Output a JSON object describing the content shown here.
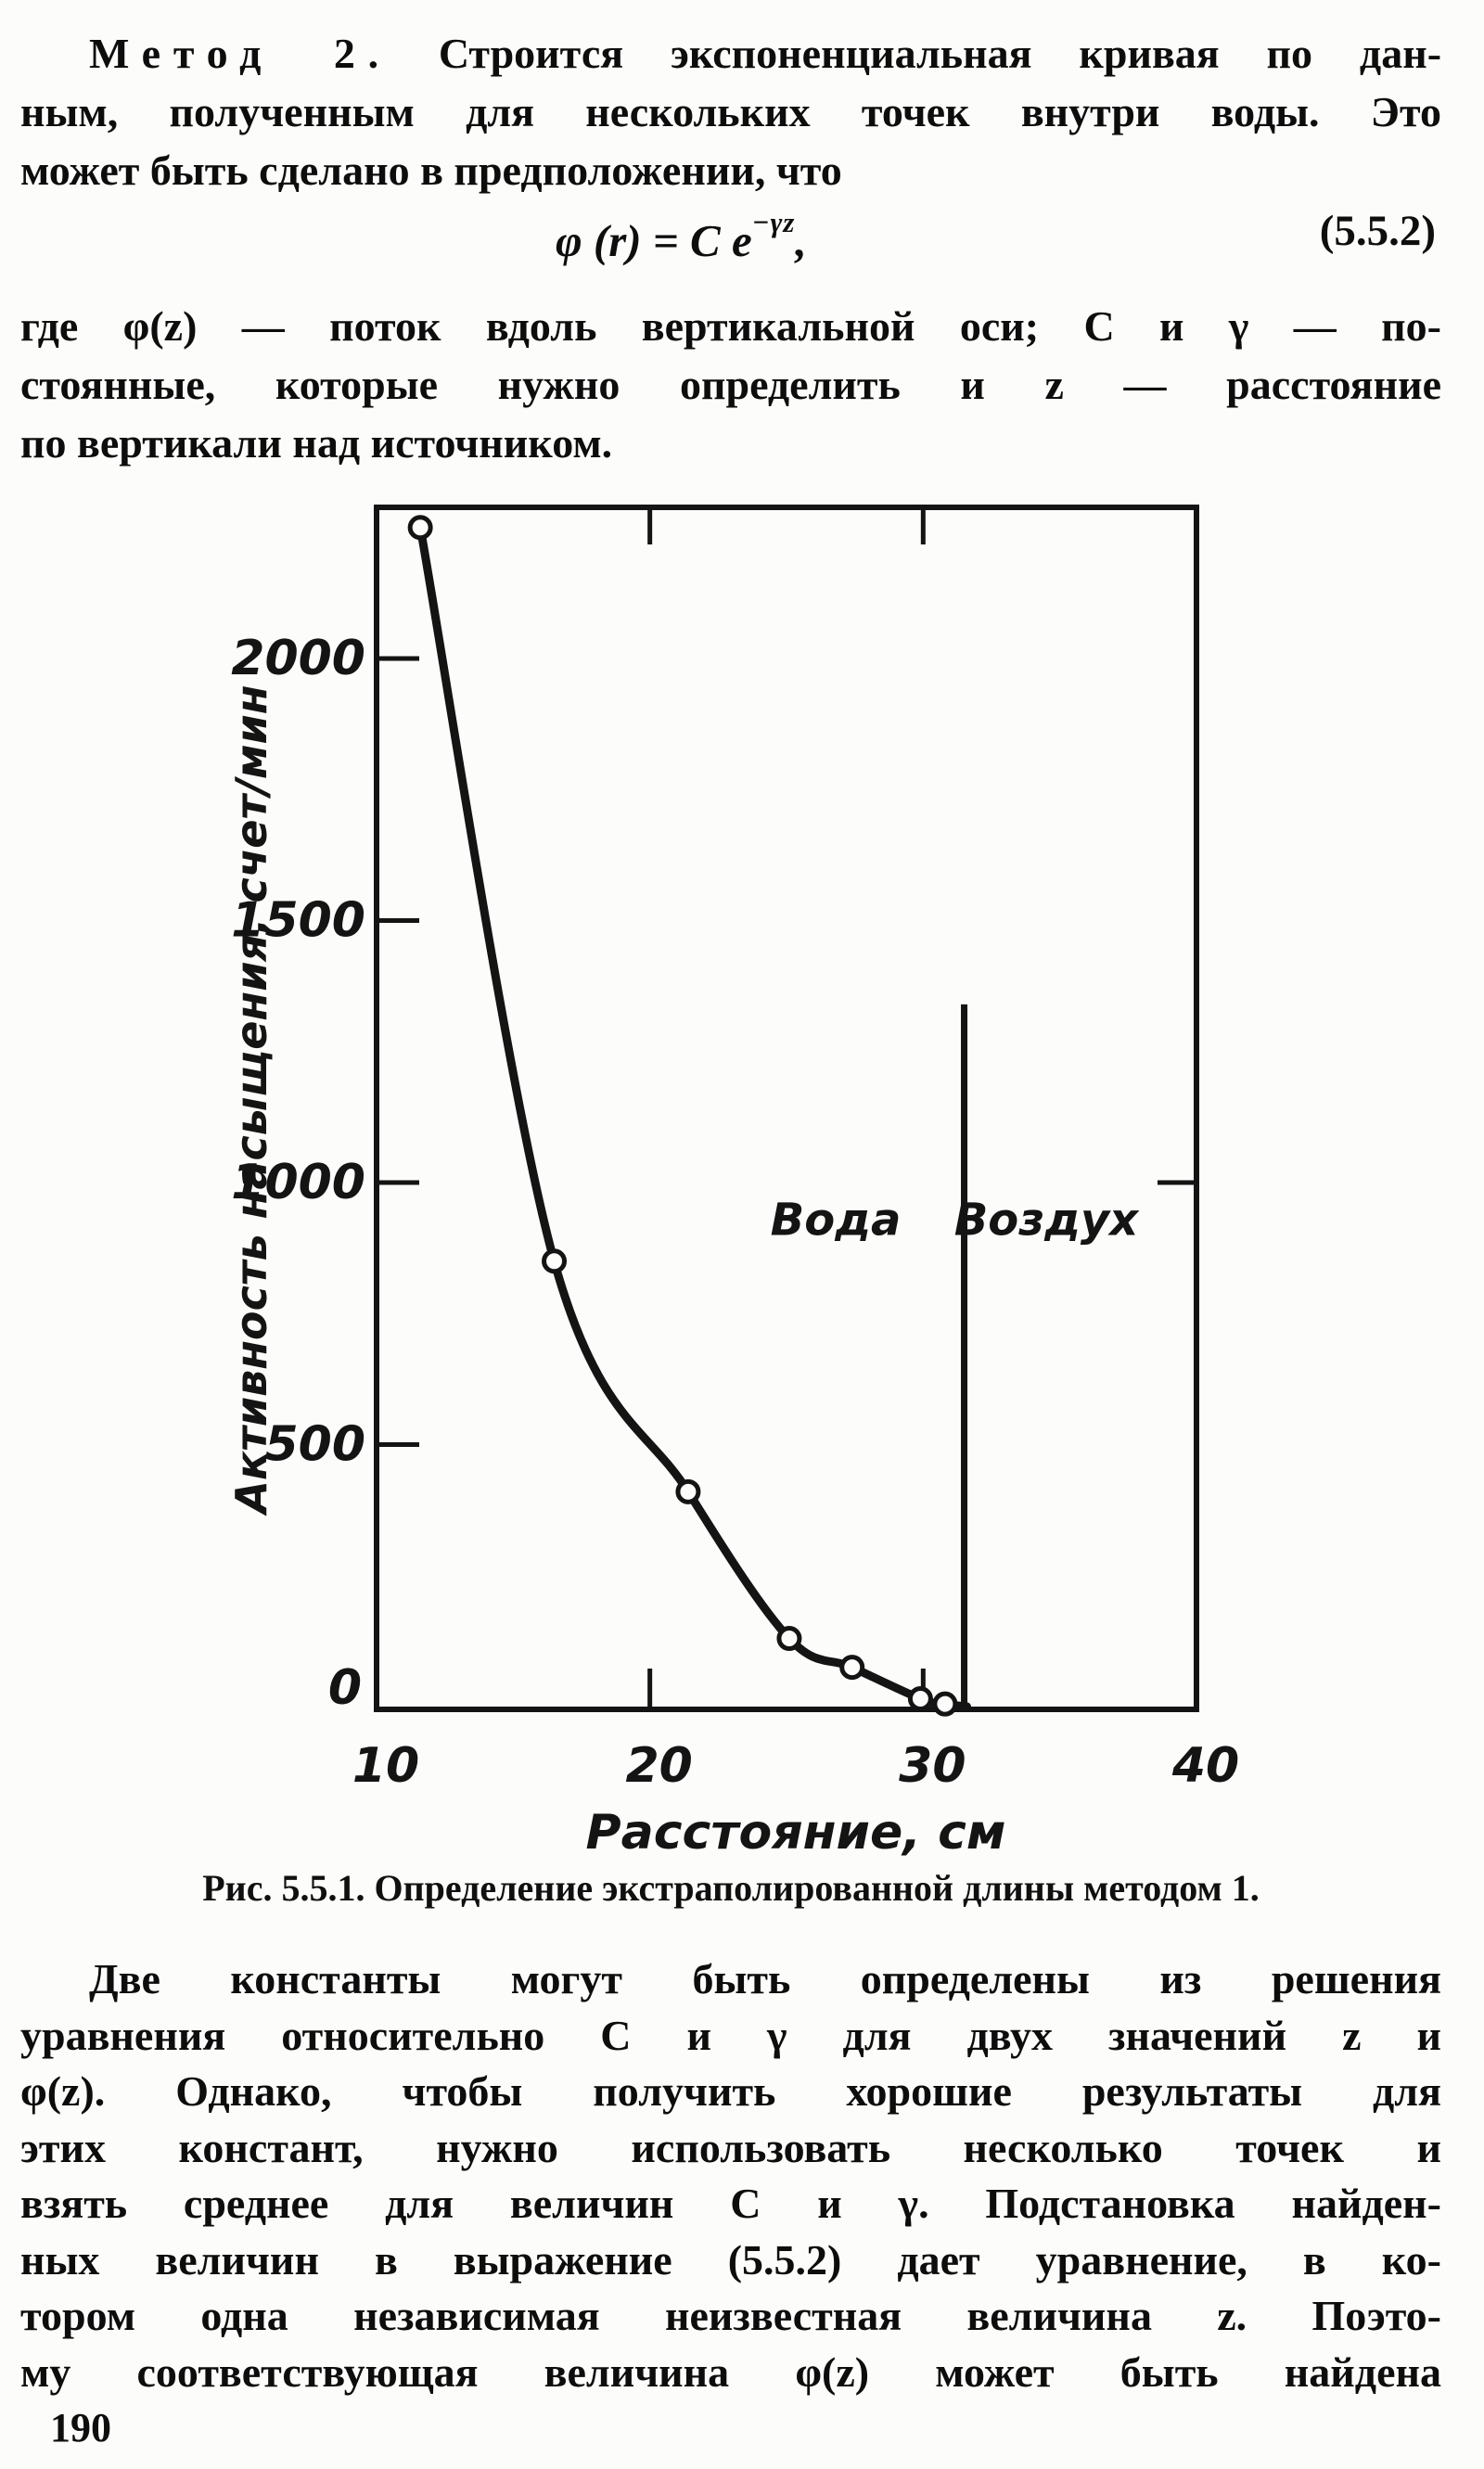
{
  "doc": {
    "para1": {
      "line1_lead": "Метод 2.",
      "line1_rest": "Строится экспоненциальная кривая по дан-",
      "line2": "ным, полученным для нескольких точек внутри воды. Это",
      "line3": "может быть сделано в предположении, что"
    },
    "equation": {
      "lhs": "φ (r) = C e",
      "sup": "−γz",
      "comma": ",",
      "number": "(5.5.2)"
    },
    "para2": {
      "line1": "где φ(z) — поток вдоль вертикальной оси; C и γ  — по-",
      "line2": "стоянные, которые нужно определить и z — расстояние",
      "line3": "по вертикали над источником."
    },
    "caption": "Рис. 5.5.1. Определение экстраполированной длины методом 1.",
    "para3": {
      "lines": [
        "Две константы могут быть определены из решения",
        "уравнения относительно C и γ для двух значений z и",
        "φ(z). Однако, чтобы получить хорошие результаты для",
        "этих констант, нужно использовать несколько точек и",
        "взять среднее для величин C и γ. Подстановка найден-",
        "ных величин в выражение (5.5.2) дает уравнение, в ко-",
        "тором одна независимая неизвестная величина z. Поэто-",
        "му соответствующая величина φ(z) может быть найдена"
      ]
    },
    "page_number": "190"
  },
  "chart_data": {
    "type": "line",
    "title": "",
    "xlabel": "Расстояние, см",
    "ylabel": "Активность насыщения, счет/мин",
    "xlim": [
      10,
      41.5
    ],
    "ylim": [
      0,
      2290
    ],
    "xticks": [
      10,
      20,
      30,
      40
    ],
    "yticks": [
      2000,
      1500,
      1000,
      500
    ],
    "origin_label": "0",
    "grid": false,
    "marker": "open-circle",
    "line_color": "#141414",
    "points": [
      {
        "x": 11.6,
        "y": 2250
      },
      {
        "x": 16.5,
        "y": 850
      },
      {
        "x": 21.4,
        "y": 410
      },
      {
        "x": 25.1,
        "y": 130
      },
      {
        "x": 27.4,
        "y": 75
      },
      {
        "x": 29.9,
        "y": 15
      },
      {
        "x": 30.8,
        "y": 5
      }
    ],
    "curve_end": {
      "x": 31.6,
      "y": 0
    },
    "boundary_line": {
      "x": 31.5,
      "y_from": 0,
      "y_to": 1340
    },
    "region_labels": [
      {
        "id": "water",
        "text": "Вода",
        "x": 26.8,
        "y": 900
      },
      {
        "id": "air",
        "text": "Воздух",
        "x": 34.5,
        "y": 900
      }
    ],
    "mirror_ticks": {
      "top_x": [
        20,
        30
      ],
      "right_y": [
        1000
      ]
    }
  }
}
